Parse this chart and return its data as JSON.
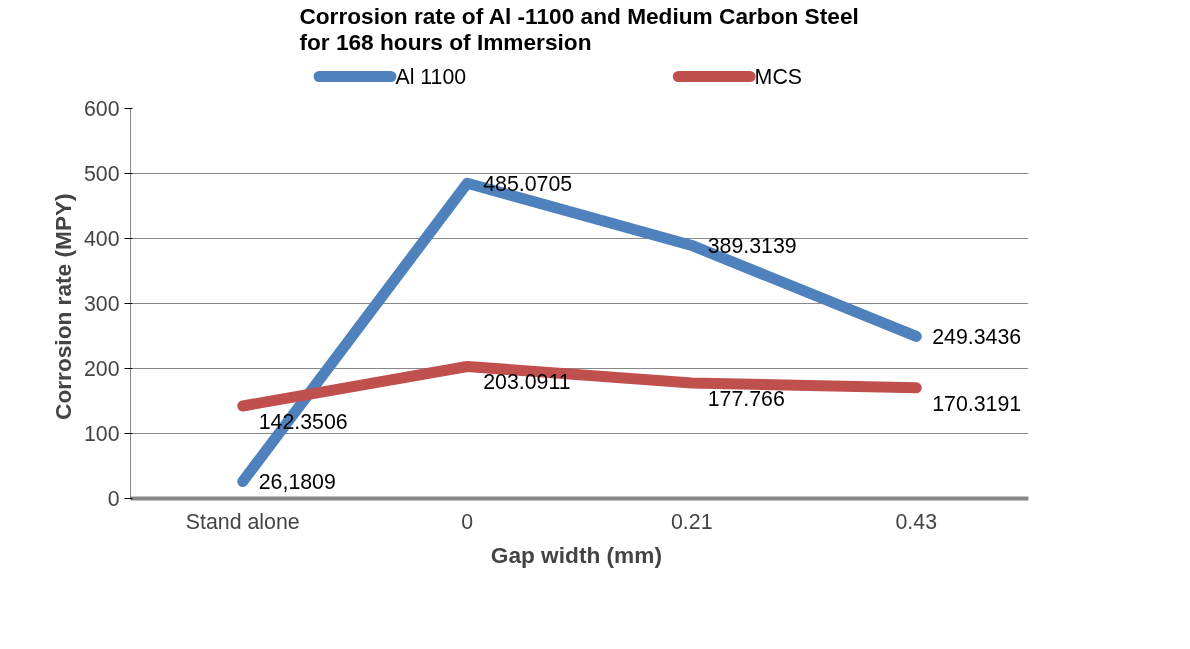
{
  "chart_data": {
    "type": "line",
    "title": "Corrosion rate of Al -1100 and Medium Carbon Steel\nfor 168 hours of Immersion",
    "xlabel": "Gap width  (mm)",
    "ylabel": "Corrosion rate  (MPY)",
    "categories": [
      "Stand alone",
      "0",
      "0.21",
      "0.43"
    ],
    "series": [
      {
        "name": "Al 1100",
        "color": "#4f81bd",
        "values": [
          26.1809,
          485.0705,
          389.3139,
          249.3436
        ],
        "value_labels": [
          "26,1809",
          "485.0705",
          "389.3139",
          "249.3436"
        ]
      },
      {
        "name": "MCS",
        "color": "#c0504d",
        "values": [
          142.3506,
          203.0911,
          177.766,
          170.3191
        ],
        "value_labels": [
          "142.3506",
          "203.0911",
          "177.766",
          "170.3191"
        ]
      }
    ],
    "ylim": [
      0,
      600
    ],
    "yticks": [
      0,
      100,
      200,
      300,
      400,
      500,
      600
    ],
    "grid": "y",
    "legend": "top",
    "marker": "none",
    "line_style": "solid"
  }
}
